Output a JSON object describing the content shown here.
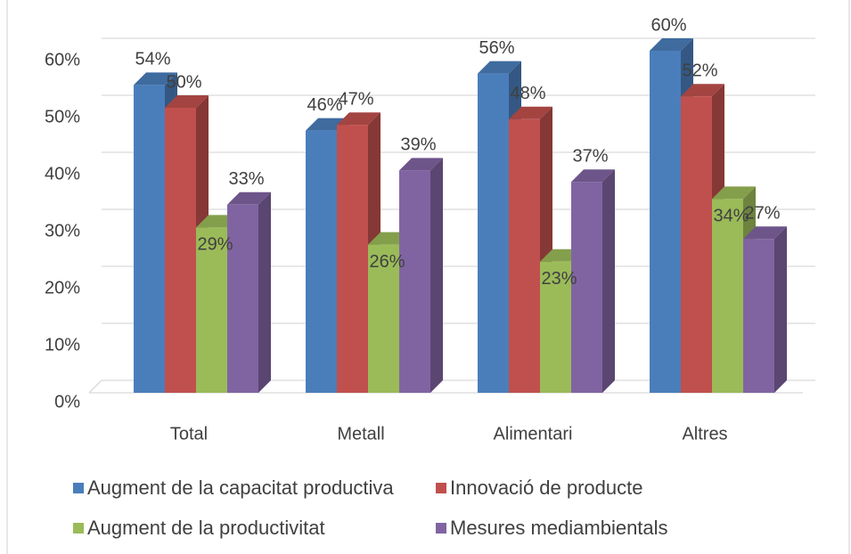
{
  "chart_data": {
    "type": "bar3d",
    "categories": [
      "Total",
      "Metall",
      "Alimentari",
      "Altres"
    ],
    "series": [
      {
        "name": "Augment de la capacitat productiva",
        "color": "#4a7ebb",
        "values": [
          54,
          46,
          56,
          60
        ],
        "value_labels": [
          "54%",
          "46%",
          "56%",
          "60%"
        ]
      },
      {
        "name": "Innovació de producte",
        "color": "#c0504d",
        "values": [
          50,
          47,
          48,
          52
        ],
        "value_labels": [
          "50%",
          "47%",
          "48%",
          "52%"
        ]
      },
      {
        "name": "Augment de la productivitat",
        "color": "#9bbb59",
        "values": [
          29,
          26,
          23,
          34
        ],
        "value_labels": [
          "29%",
          "26%",
          "23%",
          "34%"
        ]
      },
      {
        "name": "Mesures mediambientals",
        "color": "#8064a2",
        "values": [
          33,
          39,
          37,
          27
        ],
        "value_labels": [
          "33%",
          "39%",
          "37%",
          "27%"
        ]
      }
    ],
    "ylim": [
      0,
      60
    ],
    "yticks": [
      {
        "value": 0,
        "label": "0%"
      },
      {
        "value": 10,
        "label": "10%"
      },
      {
        "value": 20,
        "label": "20%"
      },
      {
        "value": 30,
        "label": "30%"
      },
      {
        "value": 40,
        "label": "40%"
      },
      {
        "value": 50,
        "label": "50%"
      },
      {
        "value": 60,
        "label": "60%"
      }
    ],
    "grid": true
  }
}
